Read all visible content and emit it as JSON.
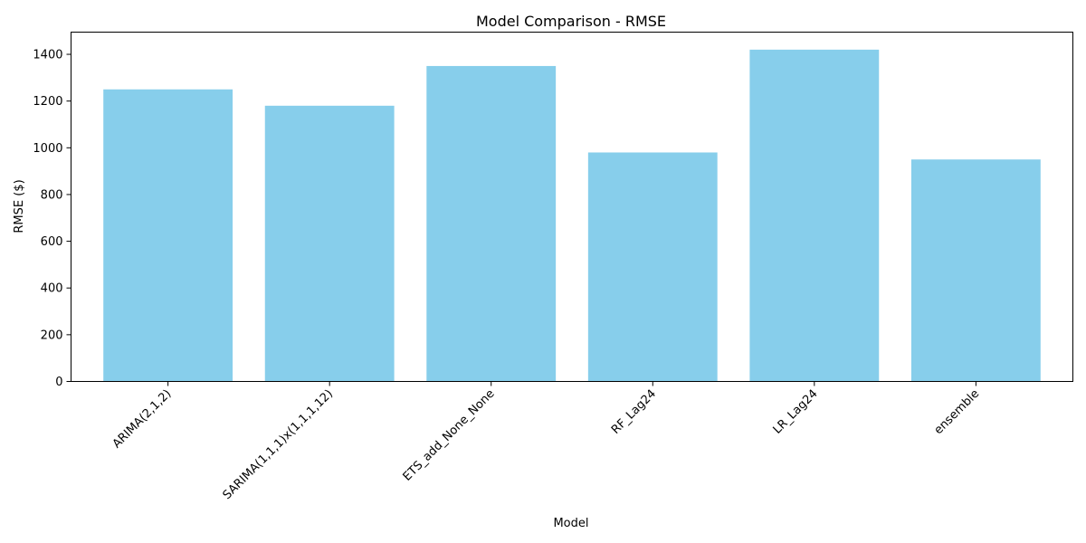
{
  "chart_data": {
    "type": "bar",
    "title": "Model Comparison - RMSE",
    "xlabel": "Model",
    "ylabel": "RMSE ($)",
    "categories": [
      "ARIMA(2,1,2)",
      "SARIMA(1,1,1)x(1,1,1,12)",
      "ETS_add_None_None",
      "RF_Lag24",
      "LR_Lag24",
      "ensemble"
    ],
    "values": [
      1250,
      1180,
      1350,
      980,
      1420,
      950
    ],
    "ylim": [
      0,
      1495
    ],
    "yticks": [
      0,
      200,
      400,
      600,
      800,
      1000,
      1200,
      1400
    ],
    "bar_color": "#87ceeb",
    "grid": false,
    "legend": false
  }
}
